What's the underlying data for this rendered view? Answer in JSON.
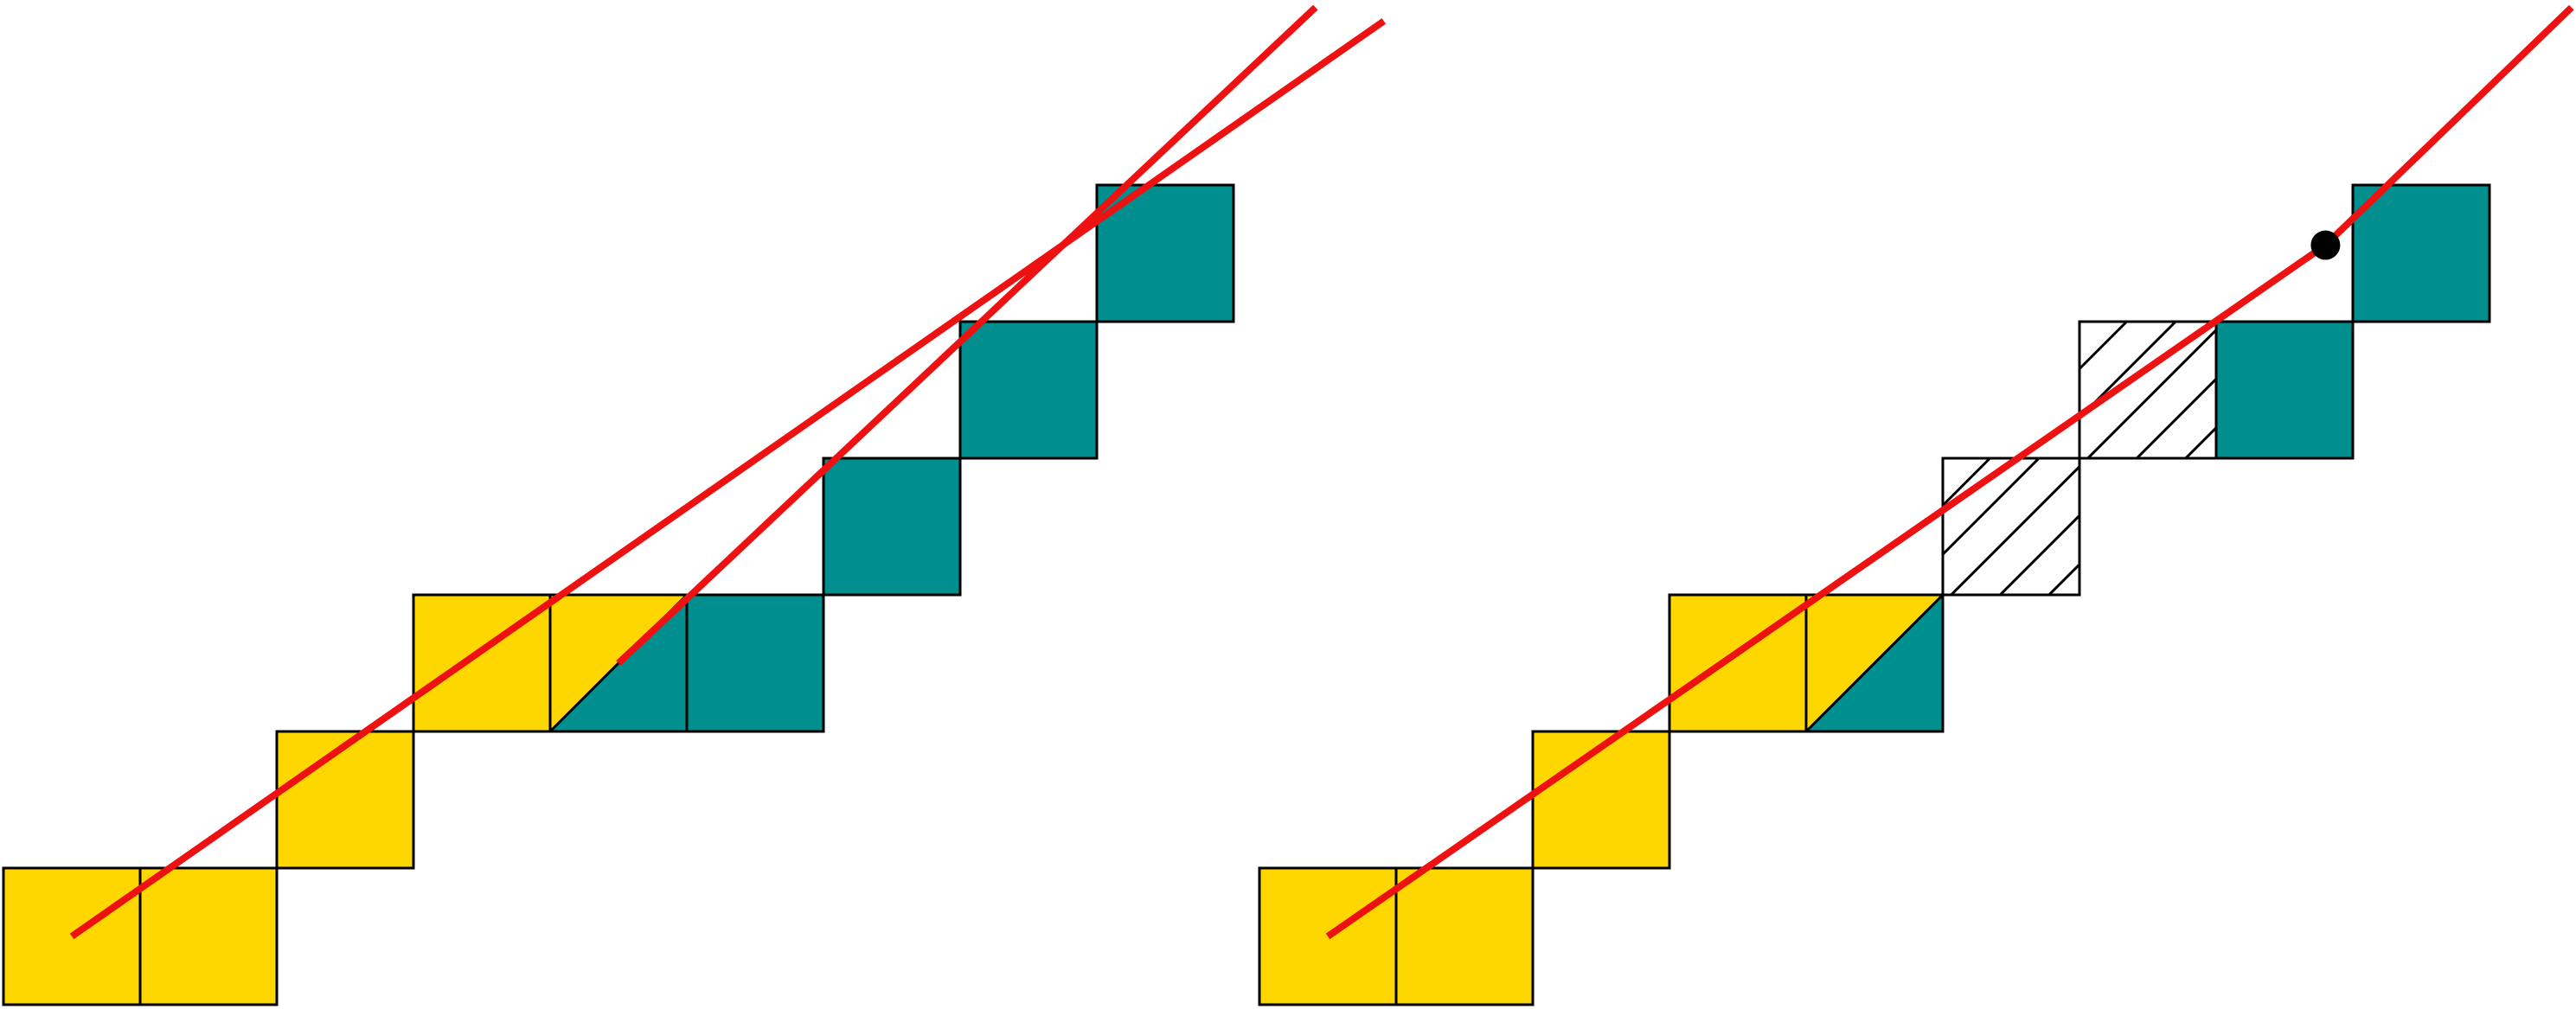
{
  "colors": {
    "background": "#ffffff",
    "yellow": "#FFD700",
    "teal": "#008E8E",
    "red": "#EE1111",
    "outline": "#000000",
    "hatch": "#000000",
    "point": "#000000"
  },
  "panels": [
    {
      "id": "left",
      "cells": [
        {
          "col": 0,
          "row": 0,
          "fill": "yellow"
        },
        {
          "col": 1,
          "row": 0,
          "fill": "yellow"
        },
        {
          "col": 2,
          "row": 1,
          "fill": "yellow"
        },
        {
          "col": 3,
          "row": 2,
          "fill": "yellow"
        },
        {
          "col": 4,
          "row": 2,
          "fill": "split"
        },
        {
          "col": 5,
          "row": 2,
          "fill": "teal"
        },
        {
          "col": 6,
          "row": 3,
          "fill": "teal"
        },
        {
          "col": 7,
          "row": 4,
          "fill": "teal"
        },
        {
          "col": 8,
          "row": 5,
          "fill": "teal"
        }
      ],
      "lines": [
        {
          "from": [
            0.5,
            0.5
          ],
          "to": [
            10.1,
            7.2
          ]
        },
        {
          "from": [
            4.5,
            2.5
          ],
          "to": [
            9.6,
            7.3
          ]
        }
      ],
      "points": []
    },
    {
      "id": "right",
      "cells": [
        {
          "col": 0,
          "row": 0,
          "fill": "yellow"
        },
        {
          "col": 1,
          "row": 0,
          "fill": "yellow"
        },
        {
          "col": 2,
          "row": 1,
          "fill": "yellow"
        },
        {
          "col": 3,
          "row": 2,
          "fill": "yellow"
        },
        {
          "col": 4,
          "row": 2,
          "fill": "split"
        },
        {
          "col": 5,
          "row": 3,
          "fill": "hatched"
        },
        {
          "col": 6,
          "row": 4,
          "fill": "hatched"
        },
        {
          "col": 7,
          "row": 4,
          "fill": "teal"
        },
        {
          "col": 8,
          "row": 5,
          "fill": "teal"
        }
      ],
      "lines": [
        {
          "from": [
            0.5,
            0.5
          ],
          "to": [
            7.8,
            5.56
          ]
        },
        {
          "from": [
            7.8,
            5.56
          ],
          "to": [
            9.6,
            7.3
          ]
        }
      ],
      "points": [
        {
          "at": [
            7.8,
            5.56
          ]
        }
      ]
    }
  ]
}
